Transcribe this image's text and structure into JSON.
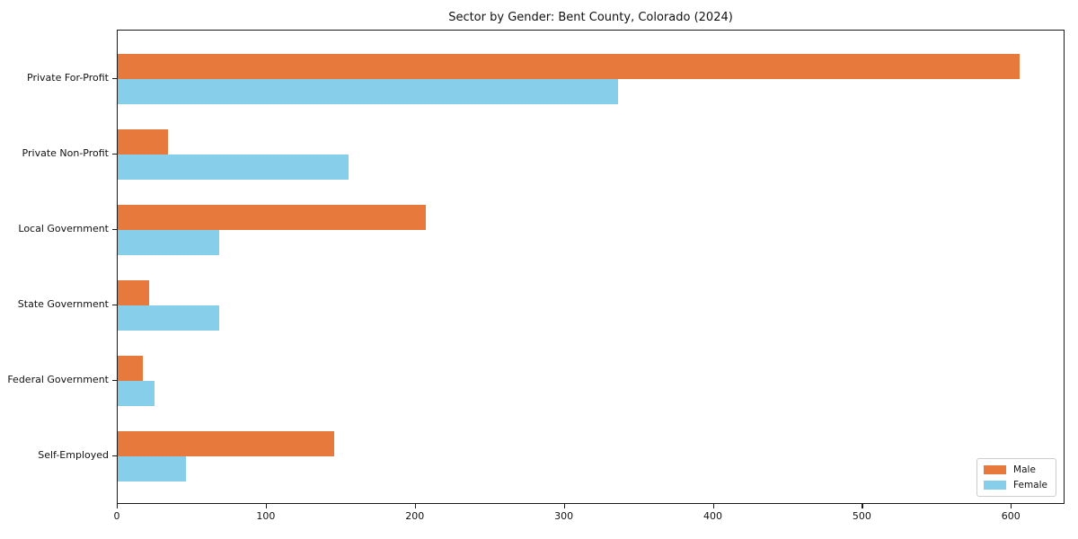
{
  "chart_data": {
    "type": "bar",
    "orientation": "horizontal",
    "title": "Sector by Gender: Bent County, Colorado (2024)",
    "categories": [
      "Private For-Profit",
      "Private Non-Profit",
      "Local Government",
      "State Government",
      "Federal Government",
      "Self-Employed"
    ],
    "series": [
      {
        "name": "Male",
        "color": "#e8793d",
        "values": [
          605,
          34,
          207,
          21,
          17,
          145
        ]
      },
      {
        "name": "Female",
        "color": "#87ceeb",
        "values": [
          336,
          155,
          68,
          68,
          25,
          46
        ]
      }
    ],
    "xlabel": "",
    "ylabel": "",
    "xlim": [
      0,
      636
    ],
    "xticks": [
      0,
      100,
      200,
      300,
      400,
      500,
      600
    ],
    "grid": false,
    "legend_position": "lower right",
    "background_color": "#ffffff",
    "frame_color": "#1a1a1a"
  }
}
